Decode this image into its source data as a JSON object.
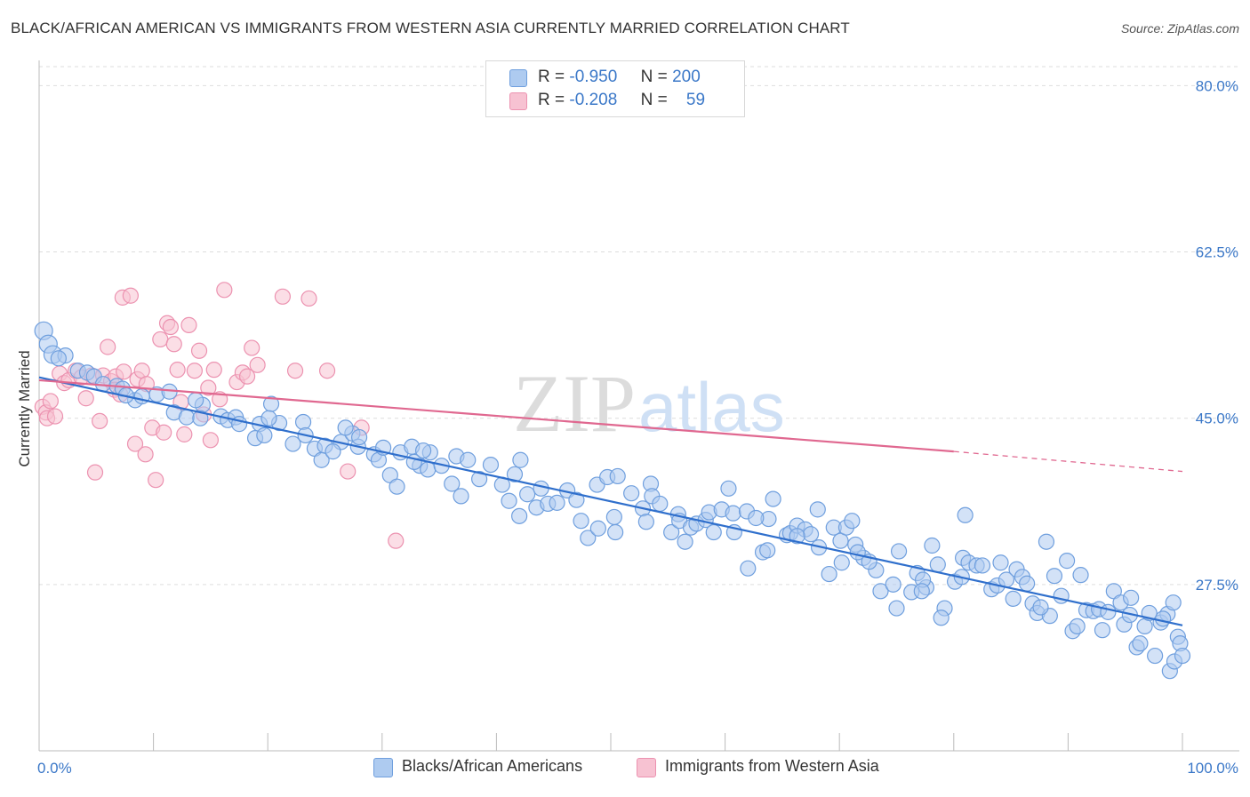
{
  "title": "BLACK/AFRICAN AMERICAN VS IMMIGRANTS FROM WESTERN ASIA CURRENTLY MARRIED CORRELATION CHART",
  "source": "Source: ZipAtlas.com",
  "watermark": {
    "zip": "ZIP",
    "atlas": "atlas"
  },
  "legend": {
    "rows": [
      {
        "r_label": "R =",
        "r_value": "-0.950",
        "n_label": "N =",
        "n_value": "200"
      },
      {
        "r_label": "R =",
        "r_value": "-0.208",
        "n_label": "N =",
        "n_value": "59"
      }
    ]
  },
  "bottom_legend": [
    "Blacks/African Americans",
    "Immigrants from Western Asia"
  ],
  "colors": {
    "blue_fill": "#aecbf0",
    "blue_stroke": "#6f9fde",
    "blue_line": "#2f6fcc",
    "pink_fill": "#f7c2d2",
    "pink_stroke": "#ec92b0",
    "pink_line": "#e06890",
    "tick_text": "#3b78c8",
    "grid": "#dddddd"
  },
  "chart_data": {
    "type": "scatter",
    "title": "BLACK/AFRICAN AMERICAN VS IMMIGRANTS FROM WESTERN ASIA CURRENTLY MARRIED CORRELATION CHART",
    "xlabel": "",
    "ylabel": "Currently Married",
    "xlim": [
      0,
      100
    ],
    "ylim": [
      10,
      82
    ],
    "x_tick_labels": [
      "0.0%",
      "100.0%"
    ],
    "y_ticks": [
      27.5,
      45.0,
      62.5,
      80.0
    ],
    "y_tick_labels": [
      "27.5%",
      "45.0%",
      "62.5%",
      "80.0%"
    ],
    "grid": true,
    "legend_position": "top-center",
    "series": [
      {
        "name": "Blacks/African Americans",
        "color": "#6f9fde",
        "trend": {
          "x": [
            0,
            100
          ],
          "y": [
            49.3,
            23.2
          ]
        },
        "points": [
          [
            0.4,
            54.2
          ],
          [
            0.8,
            52.8
          ],
          [
            1.2,
            51.7
          ],
          [
            2.3,
            51.6
          ],
          [
            1.7,
            51.3
          ],
          [
            3.4,
            50.0
          ],
          [
            4.2,
            49.8
          ],
          [
            4.8,
            49.4
          ],
          [
            5.6,
            48.6
          ],
          [
            6.8,
            48.4
          ],
          [
            7.3,
            48.1
          ],
          [
            8.4,
            46.9
          ],
          [
            7.6,
            47.4
          ],
          [
            10.3,
            47.5
          ],
          [
            9.0,
            47.3
          ],
          [
            11.4,
            47.8
          ],
          [
            11.8,
            45.6
          ],
          [
            14.3,
            46.4
          ],
          [
            12.9,
            45.1
          ],
          [
            14.1,
            45.0
          ],
          [
            13.7,
            46.9
          ],
          [
            15.9,
            45.2
          ],
          [
            16.5,
            44.8
          ],
          [
            17.2,
            45.1
          ],
          [
            17.5,
            44.4
          ],
          [
            19.3,
            44.4
          ],
          [
            18.9,
            42.9
          ],
          [
            19.7,
            43.2
          ],
          [
            21.0,
            44.5
          ],
          [
            20.3,
            46.5
          ],
          [
            20.1,
            45.0
          ],
          [
            23.1,
            44.6
          ],
          [
            22.2,
            42.3
          ],
          [
            24.1,
            41.8
          ],
          [
            23.3,
            43.2
          ],
          [
            25.0,
            42.1
          ],
          [
            24.7,
            40.6
          ],
          [
            26.4,
            42.5
          ],
          [
            25.7,
            41.5
          ],
          [
            27.4,
            43.4
          ],
          [
            27.9,
            42.0
          ],
          [
            26.8,
            44.0
          ],
          [
            28.0,
            43.0
          ],
          [
            29.3,
            41.2
          ],
          [
            29.7,
            40.6
          ],
          [
            30.7,
            39.0
          ],
          [
            30.1,
            41.9
          ],
          [
            31.3,
            37.8
          ],
          [
            31.6,
            41.4
          ],
          [
            33.3,
            40.0
          ],
          [
            32.8,
            40.4
          ],
          [
            34.2,
            41.4
          ],
          [
            32.6,
            42.0
          ],
          [
            34.0,
            39.6
          ],
          [
            33.6,
            41.6
          ],
          [
            35.2,
            40.0
          ],
          [
            36.5,
            41.0
          ],
          [
            36.1,
            38.1
          ],
          [
            37.5,
            40.6
          ],
          [
            36.9,
            36.8
          ],
          [
            38.5,
            38.6
          ],
          [
            39.5,
            40.1
          ],
          [
            40.5,
            38.0
          ],
          [
            41.1,
            36.3
          ],
          [
            42.1,
            40.6
          ],
          [
            42.7,
            37.0
          ],
          [
            41.6,
            39.1
          ],
          [
            42.0,
            34.7
          ],
          [
            43.5,
            35.6
          ],
          [
            43.9,
            37.6
          ],
          [
            44.5,
            36.0
          ],
          [
            45.3,
            36.1
          ],
          [
            46.2,
            37.4
          ],
          [
            47.0,
            36.4
          ],
          [
            47.4,
            34.2
          ],
          [
            48.0,
            32.4
          ],
          [
            48.9,
            33.4
          ],
          [
            48.8,
            38.0
          ],
          [
            49.7,
            38.8
          ],
          [
            50.3,
            34.6
          ],
          [
            50.6,
            38.9
          ],
          [
            50.4,
            33.0
          ],
          [
            51.8,
            37.1
          ],
          [
            52.8,
            35.5
          ],
          [
            53.5,
            38.1
          ],
          [
            53.6,
            36.8
          ],
          [
            54.3,
            36.0
          ],
          [
            55.3,
            33.0
          ],
          [
            53.1,
            34.1
          ],
          [
            55.9,
            34.9
          ],
          [
            56.5,
            32.0
          ],
          [
            56.0,
            34.2
          ],
          [
            57.0,
            33.5
          ],
          [
            57.5,
            33.9
          ],
          [
            58.3,
            34.3
          ],
          [
            58.6,
            35.1
          ],
          [
            59.0,
            33.0
          ],
          [
            59.7,
            35.4
          ],
          [
            60.8,
            33.0
          ],
          [
            60.7,
            35.0
          ],
          [
            60.3,
            37.6
          ],
          [
            61.9,
            35.2
          ],
          [
            62.0,
            29.2
          ],
          [
            63.3,
            30.9
          ],
          [
            63.8,
            34.4
          ],
          [
            62.7,
            34.5
          ],
          [
            63.7,
            31.1
          ],
          [
            64.2,
            36.5
          ],
          [
            65.4,
            32.7
          ],
          [
            65.7,
            32.9
          ],
          [
            66.3,
            33.7
          ],
          [
            67.0,
            33.3
          ],
          [
            67.5,
            32.8
          ],
          [
            68.1,
            35.4
          ],
          [
            66.3,
            32.6
          ],
          [
            68.2,
            31.4
          ],
          [
            69.5,
            33.5
          ],
          [
            70.1,
            32.1
          ],
          [
            69.1,
            28.6
          ],
          [
            70.2,
            29.8
          ],
          [
            70.6,
            33.5
          ],
          [
            71.1,
            34.2
          ],
          [
            71.4,
            31.7
          ],
          [
            72.1,
            30.3
          ],
          [
            71.6,
            30.9
          ],
          [
            73.2,
            29.0
          ],
          [
            72.6,
            29.9
          ],
          [
            73.6,
            26.8
          ],
          [
            74.7,
            27.5
          ],
          [
            75.2,
            31.0
          ],
          [
            75.0,
            25.0
          ],
          [
            76.8,
            28.7
          ],
          [
            76.3,
            26.7
          ],
          [
            77.6,
            27.2
          ],
          [
            77.3,
            28.0
          ],
          [
            78.1,
            31.6
          ],
          [
            77.2,
            26.8
          ],
          [
            78.6,
            29.6
          ],
          [
            79.2,
            25.0
          ],
          [
            78.9,
            24.0
          ],
          [
            80.1,
            27.8
          ],
          [
            80.8,
            30.3
          ],
          [
            81.3,
            29.8
          ],
          [
            82.0,
            29.5
          ],
          [
            80.7,
            28.3
          ],
          [
            81.0,
            34.8
          ],
          [
            82.5,
            29.5
          ],
          [
            83.3,
            27.0
          ],
          [
            83.8,
            27.4
          ],
          [
            84.6,
            28.0
          ],
          [
            84.1,
            29.8
          ],
          [
            85.2,
            26.0
          ],
          [
            85.5,
            29.1
          ],
          [
            86.0,
            28.3
          ],
          [
            86.4,
            27.6
          ],
          [
            86.9,
            25.5
          ],
          [
            87.3,
            24.5
          ],
          [
            88.1,
            32.0
          ],
          [
            88.4,
            24.2
          ],
          [
            87.6,
            25.1
          ],
          [
            88.8,
            28.4
          ],
          [
            89.4,
            26.3
          ],
          [
            89.9,
            30.0
          ],
          [
            90.4,
            22.6
          ],
          [
            91.1,
            28.5
          ],
          [
            90.8,
            23.1
          ],
          [
            91.6,
            24.8
          ],
          [
            92.2,
            24.7
          ],
          [
            92.7,
            24.9
          ],
          [
            93.0,
            22.7
          ],
          [
            93.5,
            24.6
          ],
          [
            94.0,
            26.8
          ],
          [
            94.6,
            25.6
          ],
          [
            94.9,
            23.3
          ],
          [
            95.5,
            26.1
          ],
          [
            95.4,
            24.3
          ],
          [
            96.0,
            20.9
          ],
          [
            96.3,
            21.3
          ],
          [
            96.7,
            23.1
          ],
          [
            97.1,
            24.5
          ],
          [
            97.6,
            20.0
          ],
          [
            98.1,
            23.5
          ],
          [
            98.7,
            24.4
          ],
          [
            98.3,
            23.9
          ],
          [
            98.9,
            18.4
          ],
          [
            99.2,
            25.6
          ],
          [
            99.6,
            22.0
          ],
          [
            99.8,
            21.3
          ],
          [
            99.3,
            19.4
          ],
          [
            100.0,
            20.0
          ]
        ]
      },
      {
        "name": "Immigrants from Western Asia",
        "color": "#ec92b0",
        "trend": {
          "x": [
            0,
            80
          ],
          "y": [
            49.0,
            41.5
          ]
        },
        "trend_extension": {
          "x": [
            80,
            100
          ],
          "y": [
            41.5,
            39.4
          ]
        },
        "points": [
          [
            0.3,
            46.2
          ],
          [
            0.6,
            45.6
          ],
          [
            1.0,
            46.8
          ],
          [
            0.7,
            45.0
          ],
          [
            1.4,
            45.2
          ],
          [
            1.8,
            49.7
          ],
          [
            2.2,
            48.7
          ],
          [
            2.6,
            49.0
          ],
          [
            3.2,
            50.0
          ],
          [
            3.7,
            49.3
          ],
          [
            4.1,
            47.1
          ],
          [
            4.6,
            49.5
          ],
          [
            4.9,
            39.3
          ],
          [
            5.3,
            44.7
          ],
          [
            5.6,
            49.5
          ],
          [
            6.0,
            52.5
          ],
          [
            6.3,
            48.9
          ],
          [
            6.7,
            49.4
          ],
          [
            6.6,
            48.0
          ],
          [
            7.1,
            47.5
          ],
          [
            7.3,
            57.7
          ],
          [
            7.4,
            49.9
          ],
          [
            8.0,
            57.9
          ],
          [
            8.4,
            42.3
          ],
          [
            8.6,
            49.1
          ],
          [
            9.0,
            50.0
          ],
          [
            9.3,
            41.2
          ],
          [
            9.4,
            48.6
          ],
          [
            9.9,
            44.0
          ],
          [
            10.2,
            38.5
          ],
          [
            10.6,
            53.3
          ],
          [
            10.9,
            43.5
          ],
          [
            11.2,
            55.0
          ],
          [
            11.5,
            54.6
          ],
          [
            11.8,
            52.8
          ],
          [
            12.1,
            50.1
          ],
          [
            12.4,
            46.7
          ],
          [
            12.7,
            43.3
          ],
          [
            13.1,
            54.8
          ],
          [
            13.6,
            50.0
          ],
          [
            14.0,
            52.1
          ],
          [
            14.4,
            45.4
          ],
          [
            14.8,
            48.2
          ],
          [
            15.0,
            42.7
          ],
          [
            15.3,
            50.1
          ],
          [
            15.8,
            47.0
          ],
          [
            16.2,
            58.5
          ],
          [
            17.3,
            48.8
          ],
          [
            17.8,
            49.8
          ],
          [
            18.2,
            49.4
          ],
          [
            18.6,
            52.4
          ],
          [
            19.1,
            50.6
          ],
          [
            21.3,
            57.8
          ],
          [
            22.4,
            50.0
          ],
          [
            23.6,
            57.6
          ],
          [
            25.2,
            50.0
          ],
          [
            27.0,
            39.4
          ],
          [
            28.2,
            44.0
          ],
          [
            31.2,
            32.1
          ]
        ]
      }
    ]
  }
}
